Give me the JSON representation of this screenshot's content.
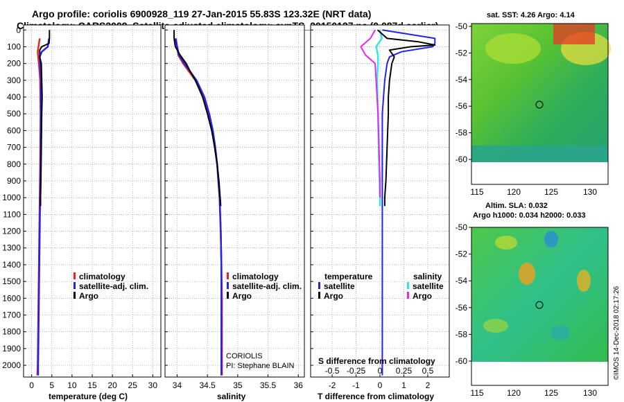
{
  "header": {
    "title_line1": "Argo profile: coriolis 6900928_119 27-Jan-2015 55.83S 123.32E (NRT data)",
    "title_line2": "Climatology: CARS2009. Satellite-adjusted climatology: synTS_20150127.nc (0.087d earlier)"
  },
  "colors": {
    "climatology": "#ee2222",
    "satellite_adj": "#2222ee",
    "argo": "#000000",
    "sal_satellite": "#33e6e6",
    "sal_argo": "#ee22ee",
    "grid": "#888888"
  },
  "depth_ticks": [
    "0",
    "100",
    "200",
    "300",
    "400",
    "500",
    "600",
    "700",
    "800",
    "900",
    "1000",
    "1100",
    "1200",
    "1300",
    "1400",
    "1500",
    "1600",
    "1700",
    "1800",
    "1900",
    "2000"
  ],
  "chart_data": [
    {
      "type": "line",
      "name": "temperature-panel",
      "xlabel": "temperature (deg C)",
      "ylabel": "depth",
      "xlim": [
        -2,
        32
      ],
      "ylim": [
        2070,
        -30
      ],
      "xticks": [
        "0",
        "5",
        "10",
        "15",
        "20",
        "25",
        "30"
      ],
      "legend": [
        "climatology",
        "satellite-adj. clim.",
        "Argo"
      ],
      "series": [
        {
          "name": "climatology",
          "depth": [
            50,
            100,
            130,
            160,
            200,
            300,
            500,
            800,
            1200,
            1600,
            2000,
            2060
          ],
          "values": [
            2.0,
            1.7,
            1.5,
            1.6,
            1.8,
            2.1,
            2.2,
            2.1,
            1.9,
            1.7,
            1.5,
            1.4
          ]
        },
        {
          "name": "satellite-adj. clim.",
          "depth": [
            50,
            100,
            130,
            160,
            200,
            300,
            500,
            800,
            1200,
            1600,
            2000,
            2060
          ],
          "values": [
            4.3,
            4.0,
            2.5,
            2.0,
            2.1,
            2.3,
            2.3,
            2.2,
            2.0,
            1.8,
            1.6,
            1.6
          ]
        },
        {
          "name": "Argo",
          "depth": [
            0,
            50,
            80,
            100,
            120,
            160,
            200,
            300,
            400,
            500,
            700,
            900,
            1000,
            1050
          ],
          "values": [
            4.4,
            4.4,
            4.3,
            2.5,
            2.0,
            2.0,
            2.4,
            2.5,
            2.6,
            2.5,
            2.4,
            2.3,
            2.2,
            2.2
          ]
        }
      ]
    },
    {
      "type": "line",
      "name": "salinity-panel",
      "xlabel": "salinity",
      "xlim": [
        33.8,
        36.1
      ],
      "ylim": [
        2070,
        -30
      ],
      "xticks": [
        "34",
        "34.5",
        "35",
        "35.5",
        "36"
      ],
      "legend": [
        "climatology",
        "satellite-adj. clim.",
        "Argo"
      ],
      "annotations": [
        "CORIOLIS",
        "PI: Stephane BLAIN"
      ],
      "series": [
        {
          "name": "climatology",
          "depth": [
            50,
            100,
            150,
            200,
            300,
            400,
            500,
            600,
            700,
            800,
            900,
            1000,
            1200,
            1400,
            1600,
            1800,
            2000,
            2060
          ],
          "values": [
            33.98,
            34.0,
            34.02,
            34.1,
            34.3,
            34.44,
            34.52,
            34.58,
            34.62,
            34.66,
            34.68,
            34.7,
            34.72,
            34.73,
            34.74,
            34.74,
            34.74,
            34.74
          ]
        },
        {
          "name": "satellite-adj. clim.",
          "depth": [
            50,
            100,
            150,
            200,
            300,
            400,
            500,
            600,
            700,
            800,
            900,
            1000,
            1200,
            1400,
            1600,
            1800,
            2000,
            2060
          ],
          "values": [
            33.97,
            34.0,
            34.03,
            34.12,
            34.32,
            34.45,
            34.53,
            34.59,
            34.63,
            34.66,
            34.68,
            34.7,
            34.72,
            34.73,
            34.73,
            34.73,
            34.73,
            34.73
          ]
        },
        {
          "name": "Argo",
          "depth": [
            0,
            50,
            100,
            150,
            200,
            250,
            300,
            400,
            500,
            600,
            700,
            800,
            900,
            1000,
            1050
          ],
          "values": [
            33.95,
            33.95,
            33.97,
            34.05,
            34.15,
            34.22,
            34.3,
            34.42,
            34.5,
            34.57,
            34.62,
            34.66,
            34.69,
            34.71,
            34.72
          ]
        }
      ]
    },
    {
      "type": "line",
      "name": "difference-panel",
      "xlabel": "T difference from climatology",
      "xlabel_top": "S difference from climatology",
      "xlim": [
        -2.9,
        2.9
      ],
      "ylim": [
        2070,
        -30
      ],
      "xticks": [
        "-2",
        "-1",
        "0",
        "1",
        "2"
      ],
      "xticks_top": [
        "-0.5",
        "-0.25",
        "0",
        "0.25",
        "0.5"
      ],
      "legend_temperature": {
        "title": "temperature",
        "items": [
          "satellite",
          "Argo"
        ]
      },
      "legend_salinity": {
        "title": "salinity",
        "items": [
          "satellite",
          "Argo"
        ]
      },
      "series": [
        {
          "name": "temperature satellite",
          "depth": [
            0,
            50,
            80,
            100,
            130,
            160,
            200,
            300,
            500,
            800,
            1200,
            1600,
            2000,
            2060
          ],
          "values": [
            0.1,
            2.3,
            2.3,
            2.2,
            0.9,
            0.4,
            0.3,
            0.2,
            0.1,
            0.1,
            0.1,
            0.1,
            0.1,
            0.1
          ]
        },
        {
          "name": "temperature Argo",
          "depth": [
            0,
            50,
            70,
            90,
            100,
            120,
            160,
            200,
            300,
            400,
            500,
            700,
            900,
            1000,
            1050
          ],
          "values": [
            -0.1,
            0.3,
            1.6,
            2.3,
            1.3,
            0.4,
            0.6,
            0.5,
            0.4,
            0.35,
            0.35,
            0.3,
            0.25,
            0.2,
            0.2
          ]
        },
        {
          "name": "salinity satellite",
          "depth": [
            0,
            50,
            100,
            150,
            200,
            300,
            500,
            800,
            1000,
            1050
          ],
          "values": [
            0,
            0.02,
            -0.04,
            -0.02,
            -0.02,
            -0.03,
            -0.02,
            -0.01,
            0.0,
            0.0
          ]
        },
        {
          "name": "salinity Argo",
          "depth": [
            0,
            50,
            100,
            150,
            200,
            300,
            400,
            500,
            700,
            900,
            1000
          ],
          "values": [
            -0.05,
            -0.1,
            -0.2,
            -0.15,
            -0.05,
            -0.04,
            -0.03,
            -0.02,
            -0.01,
            0.0,
            0.0
          ]
        }
      ]
    },
    {
      "type": "heatmap",
      "name": "sst-map",
      "title": "sat. SST: 4.26 Argo: 4.14",
      "xticks": [
        "115",
        "120",
        "125",
        "130"
      ],
      "yticks": [
        "-50",
        "-52",
        "-54",
        "-56",
        "-58",
        "-60"
      ],
      "marker": {
        "lon": 123.32,
        "lat": -55.83
      }
    },
    {
      "type": "heatmap",
      "name": "sla-map",
      "title_line1": "Altim. SLA: 0.032",
      "title_line2": "Argo h1000: 0.034 h2000: 0.033",
      "xticks": [
        "115",
        "120",
        "125",
        "130"
      ],
      "yticks": [
        "-50",
        "-52",
        "-54",
        "-56",
        "-58",
        "-60"
      ],
      "marker": {
        "lon": 123.32,
        "lat": -55.83
      },
      "credit": "©IMOS 14-Dec-2018 02:17:26"
    }
  ]
}
